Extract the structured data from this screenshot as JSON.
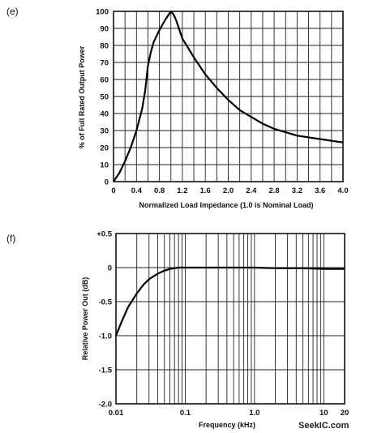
{
  "chart_data": [
    {
      "panel_label": "(e)",
      "type": "line",
      "title": "",
      "xlabel": "Normalized Load Impedance (1.0 is Nominal Load)",
      "ylabel": "% of Full Rated Output Power",
      "xlim": [
        0,
        4.0
      ],
      "ylim": [
        0,
        100
      ],
      "xticks": [
        "0",
        "0.4",
        "0.8",
        "1.2",
        "1.6",
        "2.0",
        "2.4",
        "2.8",
        "3.2",
        "3.6",
        "4.0"
      ],
      "yticks": [
        "0",
        "10",
        "20",
        "30",
        "40",
        "50",
        "60",
        "70",
        "80",
        "90",
        "100"
      ],
      "x_minor_step": 0.2,
      "grid": true,
      "series": [
        {
          "x": [
            0,
            0.1,
            0.2,
            0.3,
            0.4,
            0.5,
            0.55,
            0.6,
            0.65,
            0.7,
            0.8,
            0.9,
            1.0,
            1.05,
            1.1,
            1.2,
            1.4,
            1.6,
            1.8,
            2.0,
            2.2,
            2.4,
            2.6,
            2.8,
            3.0,
            3.2,
            3.4,
            3.6,
            3.8,
            4.0
          ],
          "y": [
            0,
            5,
            12,
            20,
            30,
            43,
            53,
            68,
            76,
            82,
            89,
            95,
            100,
            98,
            94,
            84,
            73,
            63,
            55,
            48,
            42,
            38,
            34,
            31,
            29,
            27,
            26,
            25,
            24,
            23
          ]
        }
      ]
    },
    {
      "panel_label": "(f)",
      "type": "line",
      "title": "",
      "xlabel": "Frequency (kHz)",
      "ylabel": "Relative Power Out (dB)",
      "xscale": "log",
      "xlim": [
        0.01,
        20
      ],
      "ylim": [
        -2.0,
        0.5
      ],
      "xticks": [
        {
          "value": 0.01,
          "label": "0.01"
        },
        {
          "value": 0.1,
          "label": "0.1"
        },
        {
          "value": 1.0,
          "label": "1.0"
        },
        {
          "value": 10,
          "label": "10"
        },
        {
          "value": 20,
          "label": "20"
        }
      ],
      "yticks": [
        {
          "value": 0.5,
          "label": "+0.5"
        },
        {
          "value": 0,
          "label": "0"
        },
        {
          "value": -0.5,
          "label": "-0.5"
        },
        {
          "value": -1.0,
          "label": "-1.0"
        },
        {
          "value": -1.5,
          "label": "-1.5"
        },
        {
          "value": -2.0,
          "label": "-2.0"
        }
      ],
      "grid": true,
      "series": [
        {
          "x": [
            0.01,
            0.012,
            0.015,
            0.02,
            0.025,
            0.03,
            0.04,
            0.05,
            0.06,
            0.07,
            0.08,
            0.1,
            0.2,
            0.5,
            1,
            2,
            5,
            10,
            20
          ],
          "y": [
            -1.0,
            -0.8,
            -0.58,
            -0.38,
            -0.25,
            -0.17,
            -0.09,
            -0.045,
            -0.02,
            -0.01,
            0,
            0,
            0,
            0,
            0,
            -0.01,
            -0.01,
            -0.02,
            -0.02
          ]
        }
      ]
    }
  ],
  "watermark": "SeekIC.com"
}
